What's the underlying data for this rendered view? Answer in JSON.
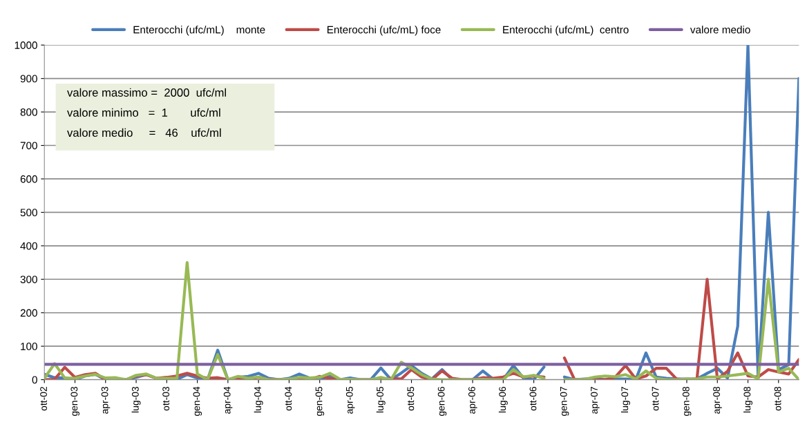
{
  "chart_data": {
    "type": "line",
    "categories": [
      "ott-02",
      null,
      null,
      "gen-03",
      null,
      null,
      "apr-03",
      null,
      null,
      "lug-03",
      null,
      null,
      "ott-03",
      null,
      null,
      "gen-04",
      null,
      null,
      "apr-04",
      null,
      null,
      "lug-04",
      null,
      null,
      "ott-04",
      null,
      null,
      "gen-05",
      null,
      null,
      "apr-05",
      null,
      null,
      "lug-05",
      null,
      null,
      "ott-05",
      null,
      null,
      "gen-06",
      null,
      null,
      "apr-06",
      null,
      null,
      "lug-06",
      null,
      null,
      "ott-06",
      null,
      null,
      "gen-07",
      null,
      null,
      "apr-07",
      null,
      null,
      "lug-07",
      null,
      null,
      "ott-07",
      null,
      null,
      "gen-08",
      null,
      null,
      "apr-08",
      null,
      null,
      "lug-08",
      null,
      null,
      "ott-08",
      null,
      null
    ],
    "series": [
      {
        "name": "Enterocchi (ufc/mL)    monte",
        "color": "#4a7ebb",
        "values": [
          16,
          6,
          5,
          0,
          11,
          16,
          0,
          0,
          0,
          7,
          15,
          4,
          0,
          1,
          15,
          5,
          0,
          88,
          0,
          7,
          10,
          19,
          4,
          0,
          4,
          17,
          5,
          1,
          10,
          0,
          5,
          0,
          0,
          35,
          0,
          20,
          42,
          19,
          2,
          30,
          0,
          0,
          0,
          26,
          2,
          0,
          42,
          4,
          0,
          38,
          null,
          8,
          0,
          2,
          4,
          0,
          2,
          2,
          0,
          80,
          8,
          4,
          2,
          2,
          2,
          19,
          34,
          5,
          160,
          1000,
          5,
          500,
          30,
          45,
          900
        ]
      },
      {
        "name": "Enterocchi (ufc/mL) foce",
        "color": "#be4b48",
        "values": [
          0,
          1,
          37,
          7,
          15,
          19,
          0,
          2,
          0,
          11,
          15,
          4,
          7,
          11,
          19,
          11,
          4,
          6,
          0,
          4,
          2,
          7,
          1,
          0,
          0,
          1,
          0,
          10,
          4,
          0,
          0,
          0,
          0,
          1,
          4,
          2,
          30,
          8,
          0,
          26,
          4,
          0,
          0,
          6,
          4,
          8,
          19,
          8,
          11,
          8,
          null,
          65,
          0,
          0,
          0,
          0,
          8,
          42,
          2,
          11,
          34,
          34,
          2,
          0,
          2,
          300,
          2,
          25,
          80,
          11,
          8,
          30,
          23,
          17,
          60
        ]
      },
      {
        "name": "Enterocchi (ufc/mL)  centro",
        "color": "#98b954",
        "values": [
          4,
          48,
          5,
          4,
          11,
          16,
          5,
          6,
          0,
          13,
          17,
          4,
          4,
          4,
          350,
          17,
          0,
          75,
          0,
          10,
          4,
          8,
          0,
          0,
          2,
          7,
          5,
          7,
          19,
          1,
          1,
          0,
          0,
          7,
          0,
          52,
          35,
          15,
          2,
          0,
          0,
          0,
          0,
          1,
          0,
          0,
          30,
          8,
          13,
          4,
          null,
          0,
          0,
          1,
          8,
          11,
          9,
          15,
          2,
          26,
          4,
          0,
          0,
          2,
          2,
          8,
          8,
          11,
          15,
          19,
          2,
          300,
          23,
          34,
          0
        ]
      },
      {
        "name": "valore medio",
        "color": "#7d60a0",
        "values": [
          46,
          46,
          46,
          46,
          46,
          46,
          46,
          46,
          46,
          46,
          46,
          46,
          46,
          46,
          46,
          46,
          46,
          46,
          46,
          46,
          46,
          46,
          46,
          46,
          46,
          46,
          46,
          46,
          46,
          46,
          46,
          46,
          46,
          46,
          46,
          46,
          46,
          46,
          46,
          46,
          46,
          46,
          46,
          46,
          46,
          46,
          46,
          46,
          46,
          46,
          46,
          46,
          46,
          46,
          46,
          46,
          46,
          46,
          46,
          46,
          46,
          46,
          46,
          46,
          46,
          46,
          46,
          46,
          46,
          46,
          46,
          46,
          46,
          46,
          46
        ]
      }
    ],
    "ylim": [
      0,
      1000
    ],
    "yticks": [
      0,
      100,
      200,
      300,
      400,
      500,
      600,
      700,
      800,
      900,
      1000
    ],
    "grid": "y",
    "legend": "top",
    "marker": "none",
    "line_style": "solid",
    "annotations": [
      "valore massimo =  2000  ufc/ml",
      "valore minimo   =  1       ufc/ml",
      "valore medio     =   46    ufc/ml"
    ]
  }
}
